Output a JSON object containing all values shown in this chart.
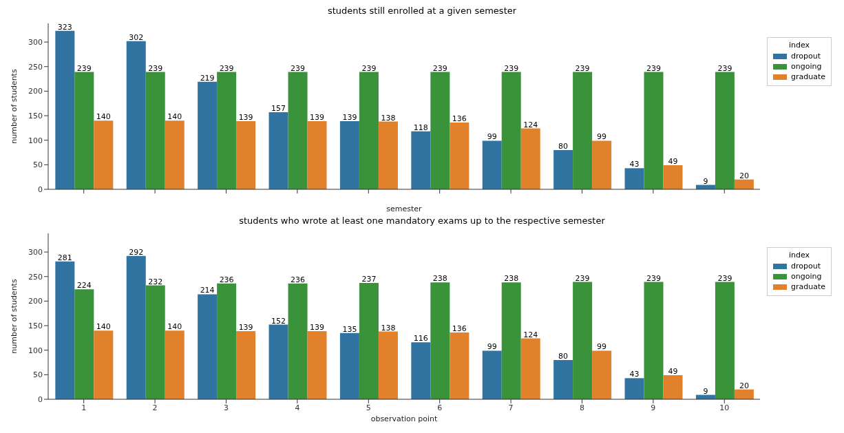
{
  "chart_data": [
    {
      "type": "bar",
      "title": "students still enrolled at a given semester",
      "xlabel": "semester",
      "ylabel": "number of students",
      "legend_title": "index",
      "categories": [
        "1",
        "2",
        "3",
        "4",
        "5",
        "6",
        "7",
        "8",
        "9",
        "10"
      ],
      "series": [
        {
          "name": "dropout",
          "color": "#3274a1",
          "values": [
            323,
            302,
            219,
            157,
            139,
            118,
            99,
            80,
            43,
            9
          ]
        },
        {
          "name": "ongoing",
          "color": "#3a923a",
          "values": [
            239,
            239,
            239,
            239,
            239,
            239,
            239,
            239,
            239,
            239
          ]
        },
        {
          "name": "graduate",
          "color": "#e1812c",
          "values": [
            140,
            140,
            139,
            139,
            138,
            136,
            124,
            99,
            49,
            20
          ]
        }
      ],
      "ylim": [
        0,
        338
      ],
      "yticks": [
        0,
        50,
        100,
        150,
        200,
        250,
        300
      ],
      "data_labels": true,
      "legend": "right",
      "grid": false,
      "tick_labels": "y"
    },
    {
      "type": "bar",
      "title": "students who wrote at least one mandatory exams up to the respective semester",
      "xlabel": "observation point",
      "ylabel": "number of students",
      "legend_title": "index",
      "categories": [
        "1",
        "2",
        "3",
        "4",
        "5",
        "6",
        "7",
        "8",
        "9",
        "10"
      ],
      "series": [
        {
          "name": "dropout",
          "color": "#3274a1",
          "values": [
            281,
            292,
            214,
            152,
            135,
            116,
            99,
            80,
            43,
            9
          ]
        },
        {
          "name": "ongoing",
          "color": "#3a923a",
          "values": [
            224,
            232,
            236,
            236,
            237,
            238,
            238,
            239,
            239,
            239
          ]
        },
        {
          "name": "graduate",
          "color": "#e1812c",
          "values": [
            140,
            140,
            139,
            139,
            138,
            136,
            124,
            99,
            49,
            20
          ]
        }
      ],
      "ylim": [
        0,
        338
      ],
      "yticks": [
        0,
        50,
        100,
        150,
        200,
        250,
        300
      ],
      "data_labels": true,
      "legend": "right",
      "grid": false
    }
  ]
}
